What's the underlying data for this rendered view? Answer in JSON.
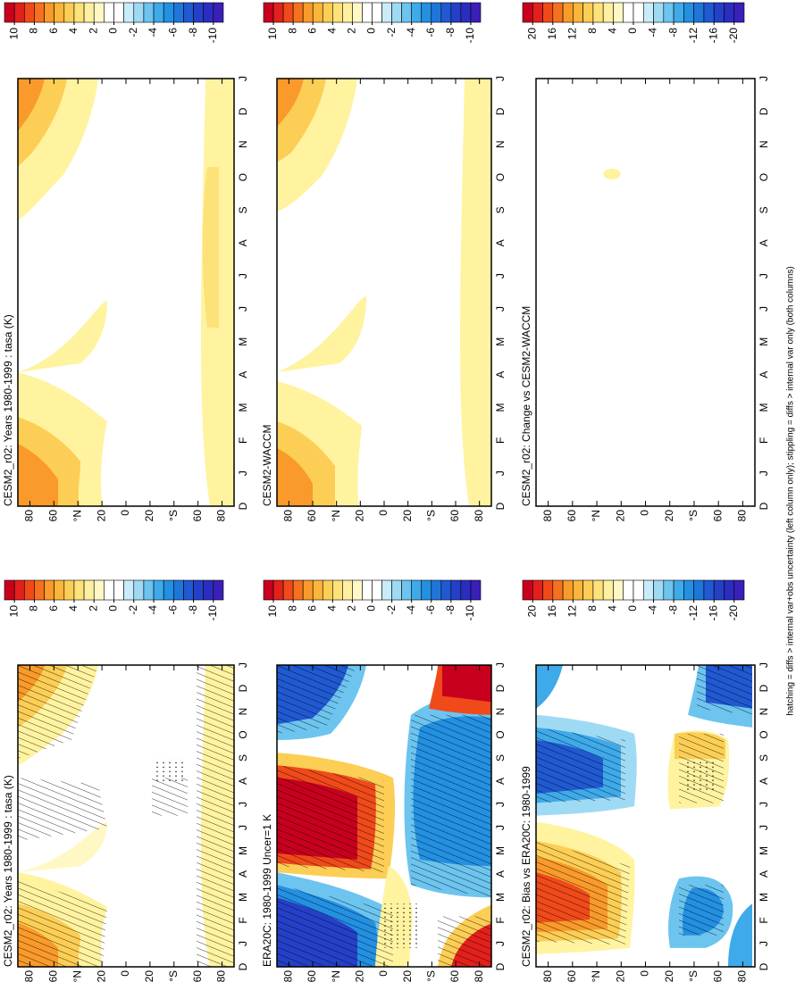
{
  "chart_data": [
    {
      "type": "contour",
      "title": "CESM2_r02: Years 1980-1999 : tasa (K)",
      "categories": [
        "D",
        "J",
        "F",
        "M",
        "A",
        "M",
        "J",
        "J",
        "A",
        "S",
        "O",
        "N",
        "D",
        "J"
      ],
      "ylim": [
        -90,
        90
      ],
      "yticks": [
        80,
        60,
        {
          "value": 40,
          "label": "°N"
        },
        20,
        0,
        {
          "value": -20,
          "label": "20"
        },
        {
          "value": -40,
          "label": "°S"
        },
        {
          "value": -60,
          "label": "60"
        },
        {
          "value": -80,
          "label": "80"
        }
      ],
      "zlim": [
        -11,
        11
      ],
      "zticks": [
        10,
        8,
        6,
        4,
        2,
        0,
        -2,
        -4,
        -6,
        -8,
        -10
      ]
    },
    {
      "type": "contour",
      "title": "ERA20C: 1980-1999 Uncer=1 K",
      "categories": [
        "D",
        "J",
        "F",
        "M",
        "A",
        "M",
        "J",
        "J",
        "A",
        "S",
        "O",
        "N",
        "D",
        "J"
      ],
      "ylim": [
        -90,
        90
      ],
      "yticks": [
        80,
        60,
        {
          "value": 40,
          "label": "°N"
        },
        20,
        0,
        {
          "value": -20,
          "label": "20"
        },
        {
          "value": -40,
          "label": "°S"
        },
        {
          "value": -60,
          "label": "60"
        },
        {
          "value": -80,
          "label": "80"
        }
      ],
      "zlim": [
        -11,
        11
      ],
      "zticks": [
        10,
        8,
        6,
        4,
        2,
        0,
        -2,
        -4,
        -6,
        -8,
        -10
      ]
    },
    {
      "type": "contour",
      "title": "CESM2_r02: Bias vs ERA20C: 1980-1999",
      "categories": [
        "D",
        "J",
        "F",
        "M",
        "A",
        "M",
        "J",
        "J",
        "A",
        "S",
        "O",
        "N",
        "D",
        "J"
      ],
      "ylim": [
        -90,
        90
      ],
      "yticks": [
        80,
        60,
        {
          "value": 40,
          "label": "°N"
        },
        20,
        0,
        {
          "value": -20,
          "label": "20"
        },
        {
          "value": -40,
          "label": "°S"
        },
        {
          "value": -60,
          "label": "60"
        },
        {
          "value": -80,
          "label": "80"
        }
      ],
      "zlim": [
        -22,
        22
      ],
      "zticks": [
        20,
        16,
        12,
        8,
        4,
        0,
        -4,
        -8,
        -12,
        -16,
        -20
      ]
    },
    {
      "type": "contour",
      "title": "CESM2_r02: Years 1980-1999 : tasa (K)",
      "categories": [
        "D",
        "J",
        "F",
        "M",
        "A",
        "M",
        "J",
        "J",
        "A",
        "S",
        "O",
        "N",
        "D",
        "J"
      ],
      "ylim": [
        -90,
        90
      ],
      "yticks": [
        80,
        60,
        {
          "value": 40,
          "label": "°N"
        },
        20,
        0,
        {
          "value": -20,
          "label": "20"
        },
        {
          "value": -40,
          "label": "°S"
        },
        {
          "value": -60,
          "label": "60"
        },
        {
          "value": -80,
          "label": "80"
        }
      ],
      "zlim": [
        -11,
        11
      ],
      "zticks": [
        10,
        8,
        6,
        4,
        2,
        0,
        -2,
        -4,
        -6,
        -8,
        -10
      ]
    },
    {
      "type": "contour",
      "title": "CESM2-WACCM",
      "categories": [
        "D",
        "J",
        "F",
        "M",
        "A",
        "M",
        "J",
        "J",
        "A",
        "S",
        "O",
        "N",
        "D",
        "J"
      ],
      "ylim": [
        -90,
        90
      ],
      "yticks": [
        80,
        60,
        {
          "value": 40,
          "label": "°N"
        },
        20,
        0,
        {
          "value": -20,
          "label": "20"
        },
        {
          "value": -40,
          "label": "°S"
        },
        {
          "value": -60,
          "label": "60"
        },
        {
          "value": -80,
          "label": "80"
        }
      ],
      "zlim": [
        -11,
        11
      ],
      "zticks": [
        10,
        8,
        6,
        4,
        2,
        0,
        -2,
        -4,
        -6,
        -8,
        -10
      ]
    },
    {
      "type": "contour",
      "title": "CESM2_r02: Change vs CESM2-WACCM",
      "categories": [
        "D",
        "J",
        "F",
        "M",
        "A",
        "M",
        "J",
        "J",
        "A",
        "S",
        "O",
        "N",
        "D",
        "J"
      ],
      "ylim": [
        -90,
        90
      ],
      "yticks": [
        80,
        60,
        {
          "value": 40,
          "label": "°N"
        },
        20,
        0,
        {
          "value": -20,
          "label": "20"
        },
        {
          "value": -40,
          "label": "°S"
        },
        {
          "value": -60,
          "label": "60"
        },
        {
          "value": -80,
          "label": "80"
        }
      ],
      "zlim": [
        -22,
        22
      ],
      "zticks": [
        20,
        16,
        12,
        8,
        4,
        0,
        -4,
        -8,
        -12,
        -16,
        -20
      ]
    }
  ],
  "footnote": "hatching = diffs > internal var+obs uncertainty (left column only); stippling = diffs > internal var only (both columns)"
}
